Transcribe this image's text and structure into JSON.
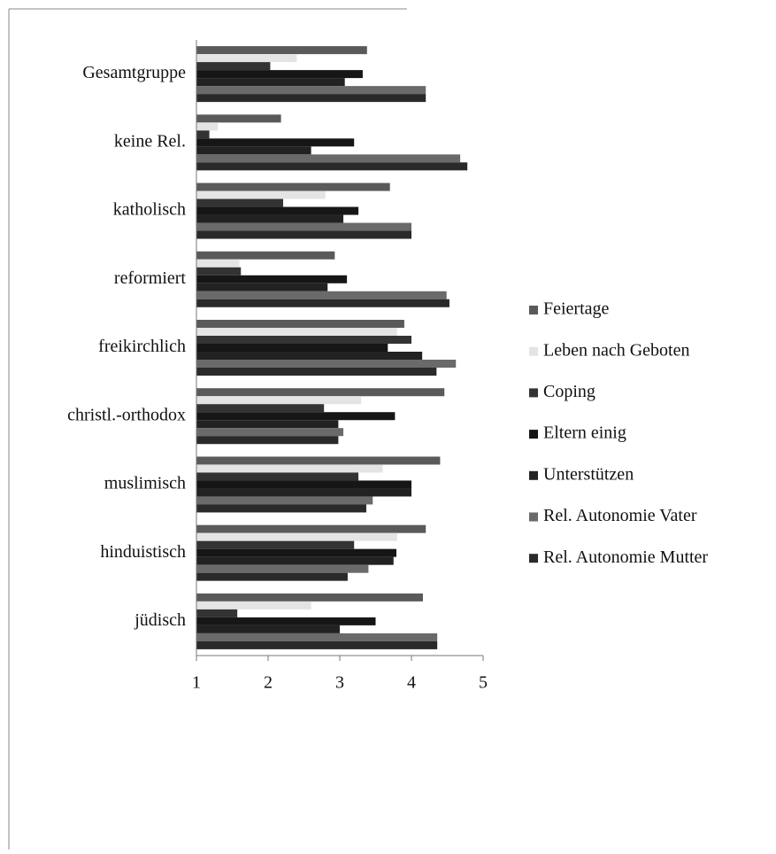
{
  "chart_data": {
    "type": "barh",
    "categories": [
      "Gesamtgruppe",
      "keine Rel.",
      "katholisch",
      "reformiert",
      "freikirchlich",
      "christl.-orthodox",
      "muslimisch",
      "hinduistisch",
      "jüdisch"
    ],
    "series": [
      {
        "name": "Feiertage",
        "color": "#5a5a5a",
        "values": [
          3.38,
          2.18,
          3.7,
          2.93,
          3.9,
          4.46,
          4.4,
          4.2,
          4.16
        ]
      },
      {
        "name": "Leben nach Geboten",
        "color": "#e4e4e4",
        "values": [
          2.4,
          1.3,
          2.8,
          1.6,
          3.8,
          3.3,
          3.6,
          3.8,
          2.6
        ]
      },
      {
        "name": "Coping",
        "color": "#333333",
        "values": [
          2.03,
          1.18,
          2.21,
          1.62,
          4.0,
          2.78,
          3.26,
          3.2,
          1.57
        ]
      },
      {
        "name": "Eltern einig",
        "color": "#161616",
        "values": [
          3.32,
          3.2,
          3.26,
          3.1,
          3.67,
          3.77,
          4.0,
          3.79,
          3.5
        ]
      },
      {
        "name": "Unterstützen",
        "color": "#222222",
        "values": [
          3.07,
          2.6,
          3.05,
          2.83,
          4.15,
          2.98,
          4.0,
          3.75,
          3.0
        ]
      },
      {
        "name": "Rel. Autonomie Vater",
        "color": "#6a6a6a",
        "values": [
          4.2,
          4.68,
          4.0,
          4.49,
          4.62,
          3.05,
          3.46,
          3.4,
          4.36
        ]
      },
      {
        "name": "Rel. Autonomie Mutter",
        "color": "#2a2a2a",
        "values": [
          4.2,
          4.78,
          4.0,
          4.53,
          4.35,
          2.98,
          3.37,
          3.11,
          4.36
        ]
      }
    ],
    "xlim": [
      1,
      5
    ],
    "xticks": [
      1,
      2,
      3,
      4,
      5
    ],
    "legend": "right"
  }
}
